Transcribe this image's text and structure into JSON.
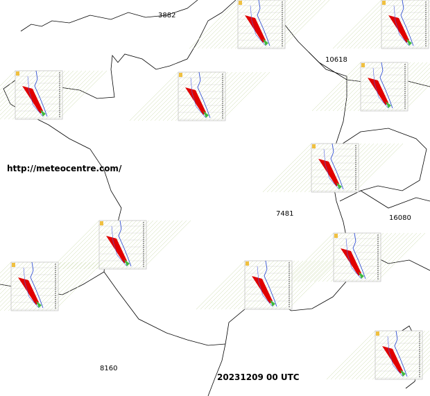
{
  "map": {
    "station_labels": [
      "3882",
      "10618",
      "16080",
      "7481",
      "8160"
    ],
    "source": "http://meteocentre.com/",
    "timestamp": "20231209 00 UTC"
  }
}
